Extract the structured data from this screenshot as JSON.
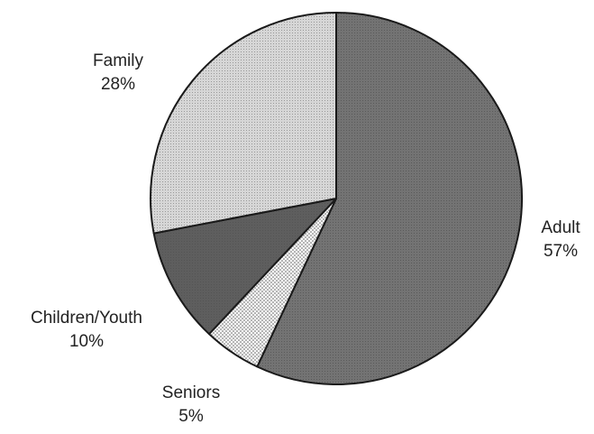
{
  "chart_data": {
    "type": "pie",
    "title": "",
    "slices": [
      {
        "label": "Adult",
        "value": 57,
        "value_label": "57%",
        "fill": "#6f6f6f",
        "pattern": "fine-dark"
      },
      {
        "label": "Seniors",
        "value": 5,
        "value_label": "5%",
        "fill": "#f2f2f2",
        "pattern": "dotted-light"
      },
      {
        "label": "Children/Youth",
        "value": 10,
        "value_label": "10%",
        "fill": "#5d5d5d",
        "pattern": "solid-dark"
      },
      {
        "label": "Family",
        "value": 28,
        "value_label": "28%",
        "fill": "#cfcfcf",
        "pattern": "fine-light"
      }
    ],
    "start_angle_deg": 0,
    "direction": "clockwise",
    "legend": "none",
    "labels": "outside"
  }
}
